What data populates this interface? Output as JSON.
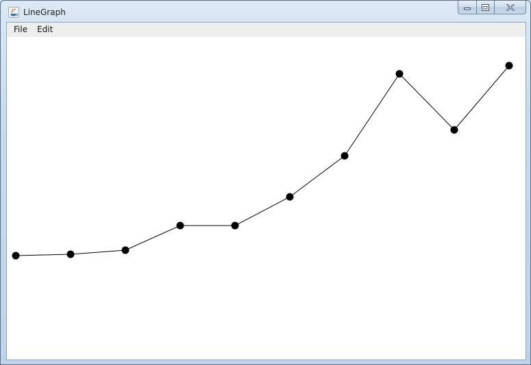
{
  "window": {
    "title": "LineGraph",
    "icon": "java-cup-icon"
  },
  "caption_buttons": {
    "minimize": "minimize-icon",
    "maximize": "restore-icon",
    "close": "close-icon"
  },
  "menubar": {
    "items": [
      {
        "label": "File"
      },
      {
        "label": "Edit"
      }
    ]
  },
  "chart_data": {
    "type": "line",
    "x": [
      1,
      2,
      3,
      4,
      5,
      6,
      7,
      8,
      9,
      10
    ],
    "series": [
      {
        "values": [
          2,
          2.1,
          2.4,
          4.2,
          4.2,
          6.3,
          9.3,
          15.3,
          11.2,
          15.9
        ],
        "color": "#000000"
      }
    ],
    "title": "",
    "xlabel": "",
    "ylabel": "",
    "ylim": [
      0,
      20
    ],
    "grid": false,
    "axes_visible": false,
    "markers": "filled-circle"
  }
}
